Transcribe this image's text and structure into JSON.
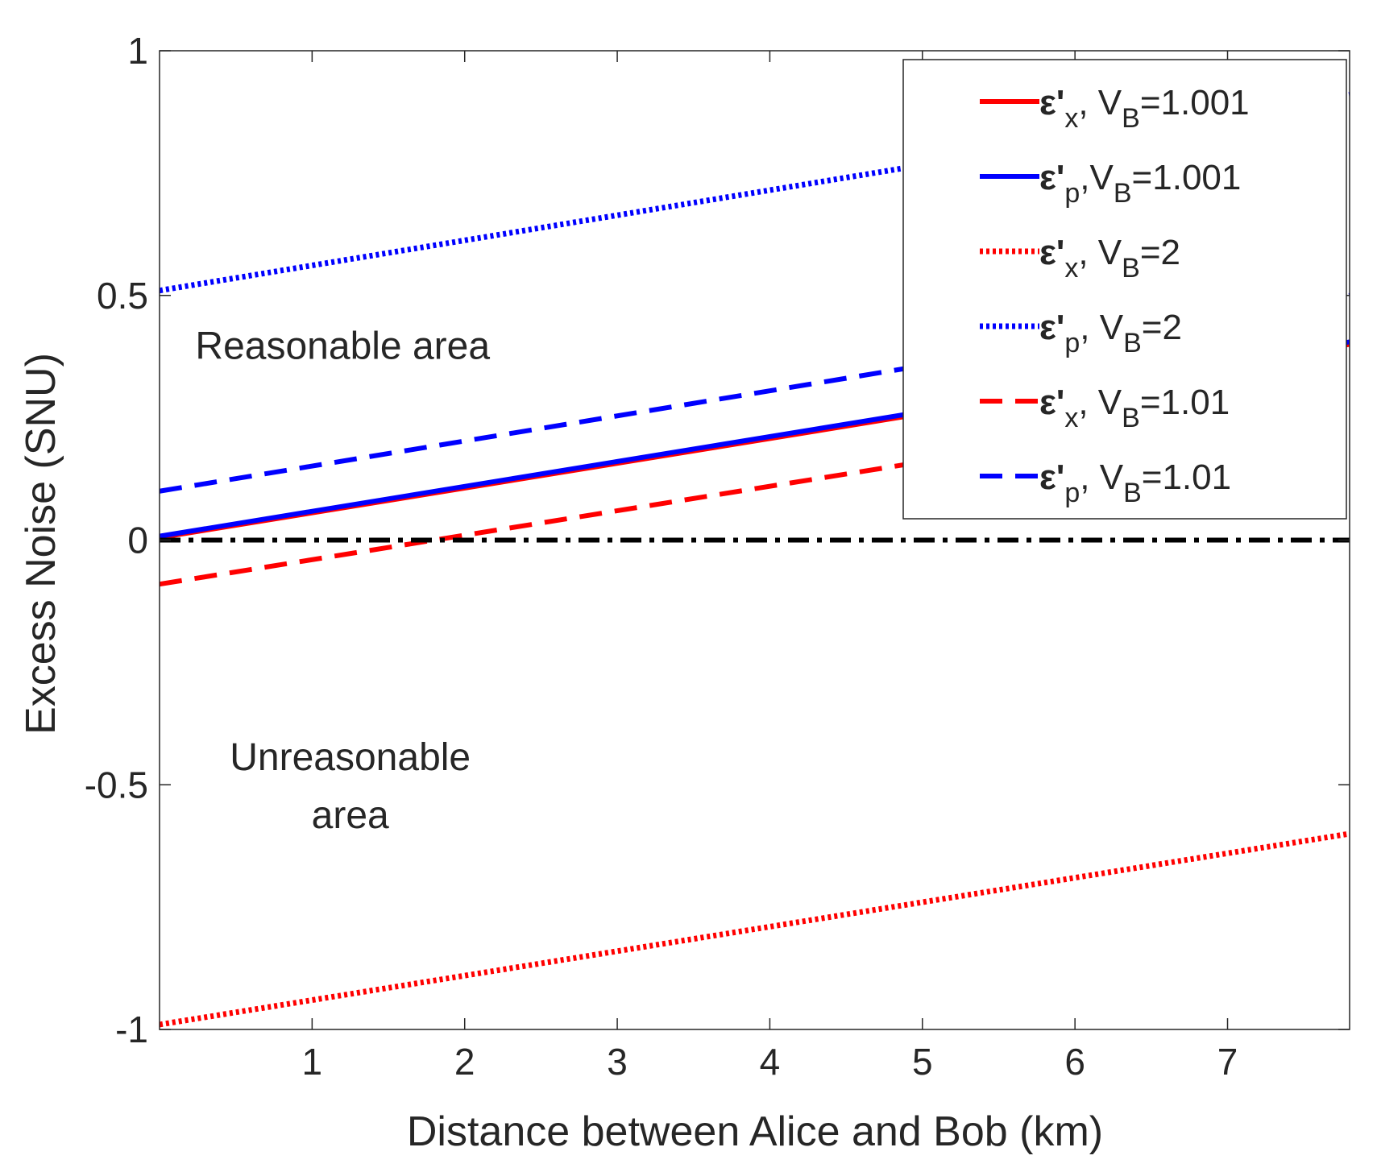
{
  "chart_data": {
    "type": "line",
    "title": "",
    "xlabel": "Distance between Alice and Bob (km)",
    "ylabel": "Excess Noise (SNU)",
    "xlim": [
      0,
      7.8
    ],
    "ylim": [
      -1,
      1
    ],
    "xticks": [
      1,
      2,
      3,
      4,
      5,
      6,
      7
    ],
    "xtick_labels": [
      "1",
      "2",
      "3",
      "4",
      "5",
      "6",
      "7"
    ],
    "yticks": [
      -1,
      -0.5,
      0,
      0.5,
      1
    ],
    "ytick_labels": [
      "-1",
      "-0.5",
      "0",
      "0.5",
      "1"
    ],
    "grid": false,
    "legend_position": "top-right",
    "series": [
      {
        "name": "ε'x, VB=1.001",
        "label": {
          "eps": "ε'",
          "sub": "x",
          "rest": ", V",
          "vsub": "B",
          "val": "=1.001"
        },
        "color": "#ff0000",
        "dash": "solid",
        "x": [
          0,
          7.8
        ],
        "y": [
          0.005,
          0.4
        ]
      },
      {
        "name": "ε'p,VB=1.001",
        "label": {
          "eps": "ε'",
          "sub": "p",
          "rest": ",V",
          "vsub": "B",
          "val": "=1.001"
        },
        "color": "#0000ff",
        "dash": "solid",
        "x": [
          0,
          7.8
        ],
        "y": [
          0.008,
          0.405
        ]
      },
      {
        "name": "ε'x, VB=2",
        "label": {
          "eps": "ε'",
          "sub": "x",
          "rest": ", V",
          "vsub": "B",
          "val": "=2"
        },
        "color": "#ff0000",
        "dash": "dotted",
        "x": [
          0,
          7.8
        ],
        "y": [
          -0.99,
          -0.6
        ]
      },
      {
        "name": "ε'p, VB=2",
        "label": {
          "eps": "ε'",
          "sub": "p",
          "rest": ", V",
          "vsub": "B",
          "val": "=2"
        },
        "color": "#0000ff",
        "dash": "dotted",
        "x": [
          0,
          7.8
        ],
        "y": [
          0.51,
          0.91
        ]
      },
      {
        "name": "ε'x, VB=1.01",
        "label": {
          "eps": "ε'",
          "sub": "x",
          "rest": ", V",
          "vsub": "B",
          "val": "=1.01"
        },
        "color": "#ff0000",
        "dash": "dashed",
        "x": [
          0,
          7.8
        ],
        "y": [
          -0.09,
          0.3
        ]
      },
      {
        "name": "ε'p, VB=1.01",
        "label": {
          "eps": "ε'",
          "sub": "p",
          "rest": ", V",
          "vsub": "B",
          "val": "=1.01"
        },
        "color": "#0000ff",
        "dash": "dashed",
        "x": [
          0,
          7.8
        ],
        "y": [
          0.1,
          0.5
        ]
      },
      {
        "name": "zero line",
        "legend": false,
        "color": "#000000",
        "dash": "dashdot",
        "x": [
          0,
          7.8
        ],
        "y": [
          0,
          0
        ]
      }
    ],
    "annotations": [
      {
        "lines": [
          "Reasonable area"
        ],
        "x": 1.2,
        "y": 0.37
      },
      {
        "lines": [
          "Unreasonable",
          "area"
        ],
        "x": 1.25,
        "y": -0.47
      }
    ]
  }
}
